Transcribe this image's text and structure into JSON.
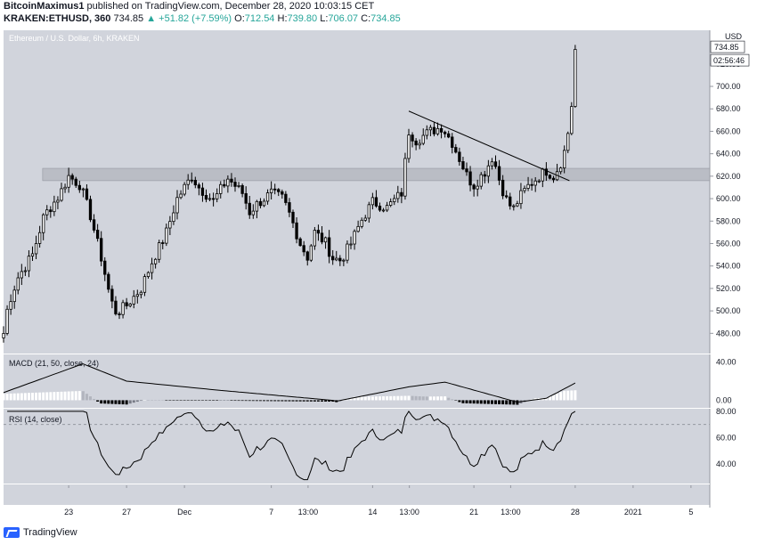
{
  "header": {
    "author": "BitcoinMaximus1",
    "published": "published on TradingView.com, December 28, 2020 10:03:15 CET",
    "symbol": "KRAKEN:ETHUSD, 360",
    "last": "734.85",
    "change": "▲ +51.82 (+7.59%)",
    "ohlc_o_label": "O:",
    "ohlc_o": "712.54",
    "ohlc_h_label": "H:",
    "ohlc_h": "739.80",
    "ohlc_l_label": "L:",
    "ohlc_l": "706.07",
    "ohlc_c_label": "C:",
    "ohlc_c": "734.85"
  },
  "footer": {
    "brand": "TradingView"
  },
  "colors": {
    "bg": "#d1d4dc",
    "candle_up": "#ffffff",
    "candle_down": "#000000",
    "zone": "#b2b5be",
    "accent": "#2962ff",
    "up_text": "#26a69a"
  },
  "chart_data": [
    {
      "type": "candlestick",
      "title": "Ethereum / U.S. Dollar, 6h, KRAKEN",
      "currency": "USD",
      "price_label": "734.85",
      "countdown_label": "02:56:46",
      "y_ticks": [
        "480.00",
        "500.00",
        "520.00",
        "540.00",
        "560.00",
        "580.00",
        "600.00",
        "620.00",
        "640.00",
        "660.00",
        "680.00",
        "700.00",
        "720.00"
      ],
      "ylim": [
        462,
        750
      ],
      "x_ticks": [
        {
          "label": "23",
          "day": 23
        },
        {
          "label": "27",
          "day": 27
        },
        {
          "label": "Dec",
          "day": 31
        },
        {
          "label": "7",
          "day": 37
        },
        {
          "label": "13:00",
          "day": 39.54
        },
        {
          "label": "14",
          "day": 44
        },
        {
          "label": "13:00",
          "day": 46.54
        },
        {
          "label": "21",
          "day": 51
        },
        {
          "label": "13:00",
          "day": 53.54
        },
        {
          "label": "28",
          "day": 58
        },
        {
          "label": "2021",
          "day": 62
        },
        {
          "label": "5",
          "day": 66
        }
      ],
      "x_unit": "days since Nov 0, 2020 (6h candles)",
      "resistance_zone": [
        616,
        627
      ],
      "trendline": [
        {
          "day": 46.5,
          "price": 678
        },
        {
          "day": 57.6,
          "price": 616
        }
      ],
      "close_anchors": [
        [
          18.5,
          480
        ],
        [
          18.8,
          505
        ],
        [
          19.5,
          530
        ],
        [
          20.5,
          550
        ],
        [
          21.3,
          585
        ],
        [
          22.3,
          602
        ],
        [
          23.0,
          620
        ],
        [
          23.8,
          612
        ],
        [
          24.5,
          585
        ],
        [
          25.3,
          545
        ],
        [
          25.9,
          510
        ],
        [
          26.3,
          498
        ],
        [
          27.0,
          505
        ],
        [
          28.0,
          520
        ],
        [
          28.8,
          545
        ],
        [
          29.7,
          568
        ],
        [
          30.5,
          600
        ],
        [
          31.5,
          620
        ],
        [
          32.0,
          610
        ],
        [
          33.0,
          598
        ],
        [
          34.0,
          618
        ],
        [
          35.0,
          605
        ],
        [
          35.5,
          588
        ],
        [
          36.0,
          595
        ],
        [
          37.0,
          605
        ],
        [
          37.8,
          600
        ],
        [
          38.3,
          585
        ],
        [
          39.0,
          560
        ],
        [
          39.5,
          548
        ],
        [
          40.0,
          570
        ],
        [
          40.8,
          560
        ],
        [
          41.2,
          547
        ],
        [
          41.8,
          545
        ],
        [
          42.5,
          560
        ],
        [
          43.2,
          580
        ],
        [
          44.0,
          597
        ],
        [
          45.0,
          592
        ],
        [
          46.0,
          605
        ],
        [
          46.5,
          660
        ],
        [
          47.0,
          652
        ],
        [
          48.0,
          660
        ],
        [
          48.8,
          664
        ],
        [
          49.5,
          650
        ],
        [
          50.2,
          630
        ],
        [
          50.6,
          618
        ],
        [
          51.0,
          612
        ],
        [
          51.8,
          625
        ],
        [
          52.3,
          638
        ],
        [
          52.8,
          615
        ],
        [
          53.2,
          600
        ],
        [
          53.7,
          590
        ],
        [
          54.2,
          602
        ],
        [
          54.8,
          612
        ],
        [
          55.5,
          620
        ],
        [
          56.0,
          625
        ],
        [
          56.5,
          620
        ],
        [
          57.0,
          632
        ],
        [
          57.4,
          648
        ],
        [
          57.7,
          680
        ],
        [
          58.0,
          700
        ],
        [
          58.2,
          733
        ]
      ],
      "macd": {
        "label": "MACD (21, 50, close, 24)",
        "y_ticks": [
          "40.00",
          "0.00"
        ],
        "ylim": [
          -8,
          48
        ]
      },
      "rsi": {
        "label": "RSI (14, close)",
        "y_ticks": [
          "80.00",
          "60.00",
          "40.00"
        ],
        "ylim": [
          25,
          82
        ]
      }
    }
  ]
}
